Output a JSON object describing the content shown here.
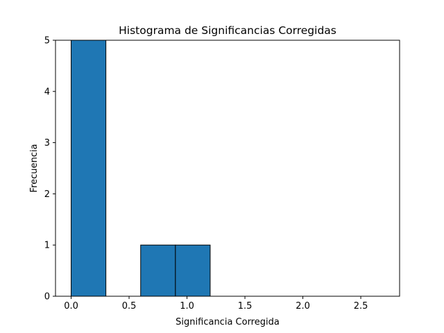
{
  "chart_data": {
    "type": "bar",
    "title": "Histograma de Significancias Corregidas",
    "xlabel": "Significancia Corregida",
    "ylabel": "Frecuencia",
    "bins": [
      {
        "start": 0.0,
        "end": 0.3,
        "count": 5
      },
      {
        "start": 0.3,
        "end": 0.6,
        "count": 0
      },
      {
        "start": 0.6,
        "end": 0.9,
        "count": 1
      },
      {
        "start": 0.9,
        "end": 1.2,
        "count": 1
      },
      {
        "start": 1.2,
        "end": 1.5,
        "count": 0
      },
      {
        "start": 1.5,
        "end": 1.8,
        "count": 0
      },
      {
        "start": 1.8,
        "end": 2.1,
        "count": 0
      },
      {
        "start": 2.1,
        "end": 2.4,
        "count": 0
      },
      {
        "start": 2.4,
        "end": 2.7,
        "count": 0
      }
    ],
    "xlim": [
      -0.135,
      2.835
    ],
    "ylim": [
      0,
      5
    ],
    "xticks": [
      "0.0",
      "0.5",
      "1.0",
      "1.5",
      "2.0",
      "2.5"
    ],
    "yticks": [
      "0",
      "1",
      "2",
      "3",
      "4",
      "5"
    ],
    "grid": false,
    "legend": "none",
    "bar_color": "#1f77b4",
    "edge_color": "#000000"
  }
}
